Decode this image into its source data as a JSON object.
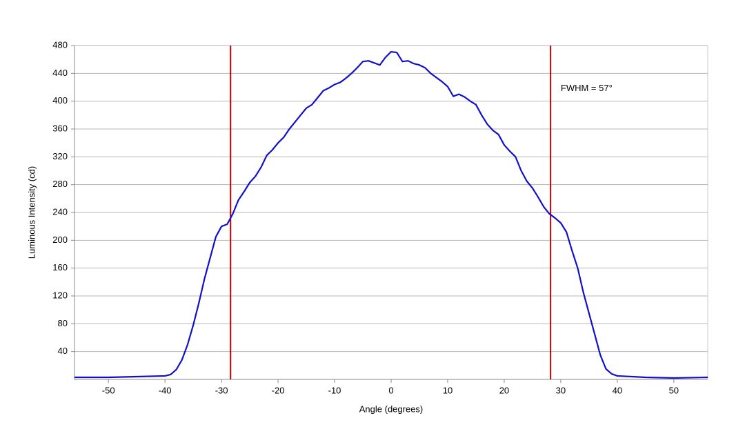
{
  "chart_data": {
    "type": "line",
    "x_label": "Angle (degrees)",
    "y_label": "Luminous Intensity (cd)",
    "xlim": [
      -56,
      56
    ],
    "ylim": [
      0,
      480
    ],
    "xticks": [
      -50,
      -40,
      -30,
      -20,
      -10,
      0,
      10,
      20,
      30,
      40,
      50
    ],
    "yticks": [
      40,
      80,
      120,
      160,
      200,
      240,
      280,
      320,
      360,
      400,
      440,
      480
    ],
    "grid": true,
    "x": [
      -56,
      -50,
      -45,
      -40,
      -39,
      -38,
      -37,
      -36,
      -35,
      -34,
      -33,
      -32,
      -31,
      -30,
      -29,
      -28,
      -27,
      -26,
      -25,
      -24,
      -23,
      -22,
      -21,
      -20,
      -19,
      -18,
      -17,
      -16,
      -15,
      -14,
      -13,
      -12,
      -11,
      -10,
      -9,
      -8,
      -7,
      -6,
      -5,
      -4,
      -3,
      -2,
      -1,
      0,
      1,
      2,
      3,
      4,
      5,
      6,
      7,
      8,
      9,
      10,
      11,
      12,
      13,
      14,
      15,
      16,
      17,
      18,
      19,
      20,
      21,
      22,
      23,
      24,
      25,
      26,
      27,
      28,
      29,
      30,
      31,
      32,
      33,
      34,
      35,
      36,
      37,
      38,
      39,
      40,
      45,
      50,
      56
    ],
    "series": [
      {
        "color": "#1010c8",
        "values": [
          3,
          3,
          4,
          5,
          7,
          14,
          28,
          50,
          78,
          110,
          145,
          175,
          205,
          220,
          223,
          238,
          258,
          270,
          283,
          292,
          305,
          322,
          330,
          340,
          348,
          360,
          370,
          380,
          390,
          395,
          405,
          415,
          419,
          424,
          427,
          433,
          440,
          448,
          457,
          458,
          455,
          452,
          463,
          471,
          470,
          457,
          458,
          454,
          452,
          448,
          440,
          434,
          428,
          421,
          407,
          410,
          406,
          400,
          395,
          380,
          367,
          358,
          352,
          337,
          328,
          320,
          300,
          285,
          275,
          262,
          248,
          238,
          232,
          225,
          212,
          185,
          160,
          125,
          95,
          65,
          35,
          15,
          8,
          5,
          3,
          2,
          3
        ]
      }
    ],
    "vlines": [
      {
        "x": -28.4,
        "color": "#c00000"
      },
      {
        "x": 28.2,
        "color": "#c00000"
      }
    ],
    "annotations": [
      {
        "text": "FWHM = 57°",
        "x": 30,
        "y": 418
      }
    ]
  }
}
